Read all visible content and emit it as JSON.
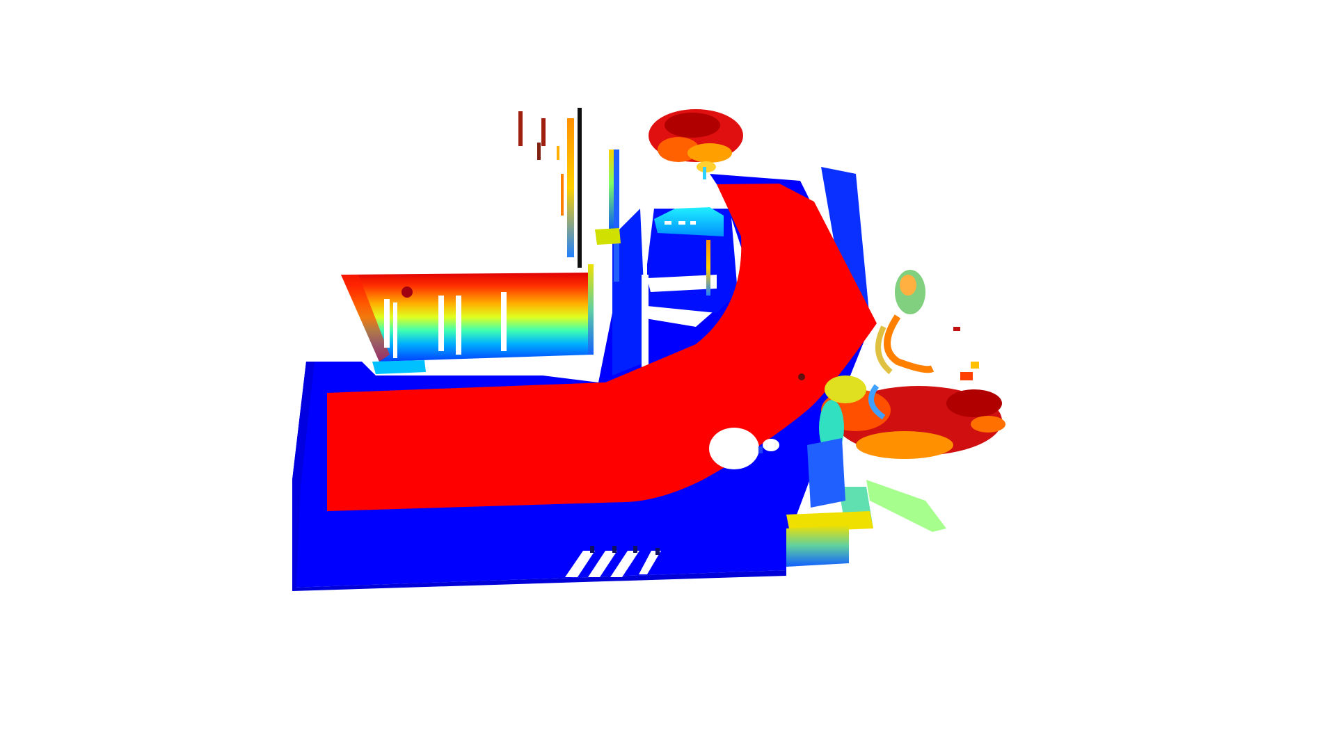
{
  "viewer": {
    "background_color": "#ffffff",
    "colormap": "jet",
    "colors": {
      "road_surface": "#ff0000",
      "ground": "#0000ff",
      "ground_edge": "#0000e6",
      "sky_hole": "#ffffff"
    }
  }
}
